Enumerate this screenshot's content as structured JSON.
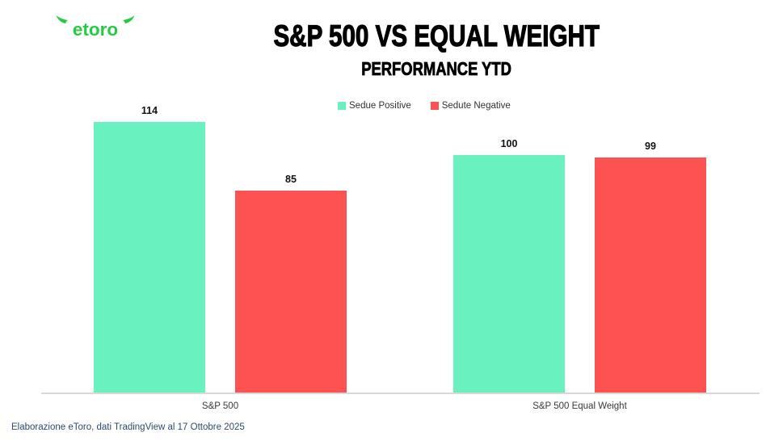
{
  "logo": {
    "text": "etoro",
    "color": "#24cb43"
  },
  "header": {
    "title": "S&P 500 VS EQUAL WEIGHT",
    "subtitle": "PERFORMANCE YTD"
  },
  "legend": [
    {
      "label": "Sedue Positive",
      "color": "#69f2c0"
    },
    {
      "label": "Sedute Negative",
      "color": "#fc5252"
    }
  ],
  "chart_data": {
    "type": "bar",
    "title": "S&P 500 VS EQUAL WEIGHT",
    "subtitle": "PERFORMANCE YTD",
    "categories": [
      "S&P 500",
      "S&P 500 Equal Weight"
    ],
    "series": [
      {
        "name": "Sedue Positive",
        "color": "#69f2c0",
        "values": [
          114,
          100
        ]
      },
      {
        "name": "Sedute Negative",
        "color": "#fc5252",
        "values": [
          85,
          99
        ]
      }
    ],
    "ylim": [
      0,
      120
    ],
    "value_labels": true,
    "grid": false,
    "legend_position": "top",
    "axis_line_color": "#d8d8d8"
  },
  "footer": {
    "source": "Elaborazione eToro, dati TradingView al 17 Ottobre 2025"
  }
}
